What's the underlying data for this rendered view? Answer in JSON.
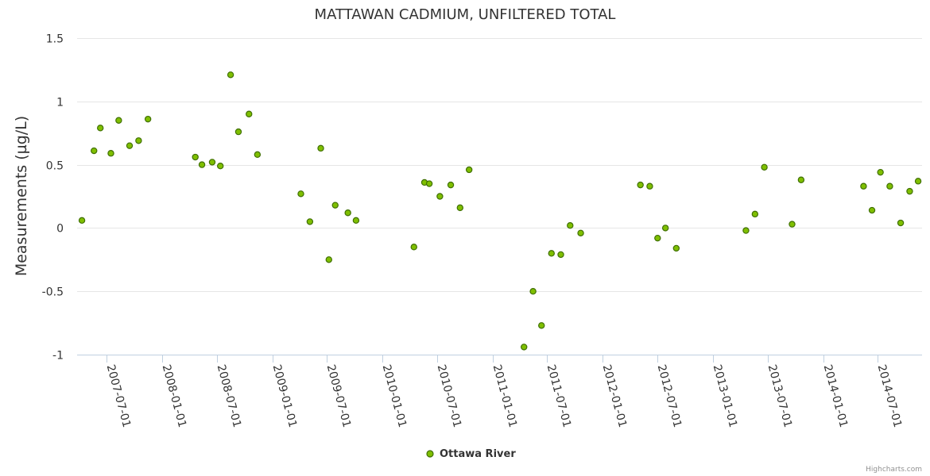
{
  "chart_data": {
    "type": "scatter",
    "title": "MATTAWAN CADMIUM, UNFILTERED TOTAL",
    "ylabel": "Measurements (µg/L)",
    "xlabel": "",
    "ylim": [
      -1,
      1.5
    ],
    "y_ticks": [
      "1.5",
      "1",
      "0.5",
      "0",
      "-0.5",
      "-1"
    ],
    "x_ticks": [
      "2007-07-01",
      "2008-01-01",
      "2008-07-01",
      "2009-01-01",
      "2009-07-01",
      "2010-01-01",
      "2010-07-01",
      "2011-01-01",
      "2011-07-01",
      "2012-01-01",
      "2012-07-01",
      "2013-01-01",
      "2013-07-01",
      "2014-01-01",
      "2014-07-01"
    ],
    "xlim": [
      "2007-03-25",
      "2014-11-25"
    ],
    "grid": true,
    "legend_position": "bottom-center",
    "series": [
      {
        "name": "Ottawa River",
        "color": "#7fbf00",
        "marker": "circle",
        "points": [
          {
            "x": "2007-04-10",
            "y": 0.06
          },
          {
            "x": "2007-05-20",
            "y": 0.61
          },
          {
            "x": "2007-06-10",
            "y": 0.79
          },
          {
            "x": "2007-07-15",
            "y": 0.59
          },
          {
            "x": "2007-08-10",
            "y": 0.85
          },
          {
            "x": "2007-09-15",
            "y": 0.65
          },
          {
            "x": "2007-10-15",
            "y": 0.69
          },
          {
            "x": "2007-11-15",
            "y": 0.86
          },
          {
            "x": "2008-04-20",
            "y": 0.56
          },
          {
            "x": "2008-05-12",
            "y": 0.5
          },
          {
            "x": "2008-06-15",
            "y": 0.52
          },
          {
            "x": "2008-07-12",
            "y": 0.49
          },
          {
            "x": "2008-08-15",
            "y": 1.21
          },
          {
            "x": "2008-09-10",
            "y": 0.76
          },
          {
            "x": "2008-10-15",
            "y": 0.9
          },
          {
            "x": "2008-11-12",
            "y": 0.58
          },
          {
            "x": "2009-04-05",
            "y": 0.27
          },
          {
            "x": "2009-05-05",
            "y": 0.05
          },
          {
            "x": "2009-06-10",
            "y": 0.63
          },
          {
            "x": "2009-07-07",
            "y": -0.25
          },
          {
            "x": "2009-07-28",
            "y": 0.18
          },
          {
            "x": "2009-09-08",
            "y": 0.12
          },
          {
            "x": "2009-10-05",
            "y": 0.06
          },
          {
            "x": "2010-04-15",
            "y": -0.15
          },
          {
            "x": "2010-05-20",
            "y": 0.36
          },
          {
            "x": "2010-06-05",
            "y": 0.35
          },
          {
            "x": "2010-07-10",
            "y": 0.25
          },
          {
            "x": "2010-08-15",
            "y": 0.34
          },
          {
            "x": "2010-09-15",
            "y": 0.16
          },
          {
            "x": "2010-10-15",
            "y": 0.46
          },
          {
            "x": "2011-04-15",
            "y": -0.94
          },
          {
            "x": "2011-05-15",
            "y": -0.5
          },
          {
            "x": "2011-06-12",
            "y": -0.77
          },
          {
            "x": "2011-07-15",
            "y": -0.2
          },
          {
            "x": "2011-08-15",
            "y": -0.21
          },
          {
            "x": "2011-09-15",
            "y": 0.02
          },
          {
            "x": "2011-10-20",
            "y": -0.04
          },
          {
            "x": "2012-05-05",
            "y": 0.34
          },
          {
            "x": "2012-06-05",
            "y": 0.33
          },
          {
            "x": "2012-07-01",
            "y": -0.08
          },
          {
            "x": "2012-07-27",
            "y": 0.0
          },
          {
            "x": "2012-09-01",
            "y": -0.16
          },
          {
            "x": "2013-04-20",
            "y": -0.02
          },
          {
            "x": "2013-05-20",
            "y": 0.11
          },
          {
            "x": "2013-06-20",
            "y": 0.48
          },
          {
            "x": "2013-09-20",
            "y": 0.03
          },
          {
            "x": "2013-10-20",
            "y": 0.38
          },
          {
            "x": "2014-05-15",
            "y": 0.33
          },
          {
            "x": "2014-06-12",
            "y": 0.14
          },
          {
            "x": "2014-07-10",
            "y": 0.44
          },
          {
            "x": "2014-08-10",
            "y": 0.33
          },
          {
            "x": "2014-09-15",
            "y": 0.04
          },
          {
            "x": "2014-10-15",
            "y": 0.29
          },
          {
            "x": "2014-11-12",
            "y": 0.37
          }
        ]
      }
    ]
  },
  "credits": "Highcharts.com"
}
